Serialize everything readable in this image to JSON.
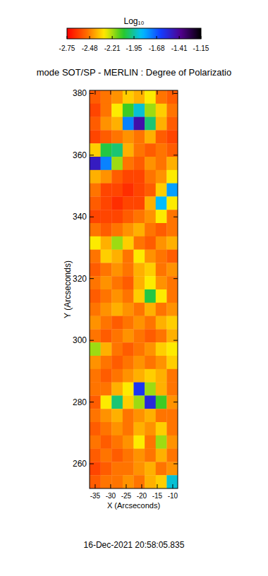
{
  "chart_data": {
    "type": "heatmap",
    "title": "mode SOT/SP - MERLIN : Degree of Polarizatio",
    "x_label": "X (Arcseconds)",
    "y_label": "Y (Arcseconds)",
    "footer": "16-Dec-2021 20:58:05.835",
    "xlim": [
      -36.8,
      -8.4
    ],
    "ylim": [
      252,
      381
    ],
    "xticks": [
      -35,
      -30,
      -25,
      -20,
      -15,
      -10
    ],
    "yticks": [
      260,
      280,
      300,
      320,
      340,
      360,
      380
    ],
    "colorbar": {
      "label": "Log₁₀",
      "range": [
        -2.75,
        -1.15
      ],
      "ticks": [
        -2.75,
        -2.48,
        -2.21,
        -1.95,
        -1.68,
        -1.41,
        -1.15
      ]
    },
    "x": [
      -35.03,
      -31.48,
      -27.93,
      -24.38,
      -20.83,
      -17.28,
      -13.73,
      -10.18
    ],
    "y": [
      378.85,
      374.55,
      370.25,
      365.95,
      361.65,
      357.35,
      353.05,
      348.75,
      344.45,
      340.15,
      335.85,
      331.55,
      327.25,
      322.95,
      318.65,
      314.35,
      310.05,
      305.75,
      301.45,
      297.15,
      292.85,
      288.55,
      284.25,
      279.95,
      275.65,
      271.35,
      267.05,
      262.75,
      258.45,
      254.15
    ],
    "z": [
      [
        -2.55,
        -2.5,
        -2.45,
        -2.35,
        -2.4,
        -2.3,
        -2.5,
        -2.55
      ],
      [
        -2.6,
        -2.5,
        -2.3,
        -2.1,
        -1.9,
        -2.2,
        -2.35,
        -2.5
      ],
      [
        -2.55,
        -2.45,
        -2.4,
        -1.75,
        -1.45,
        -2.0,
        -2.4,
        -2.55
      ],
      [
        -2.6,
        -2.55,
        -2.5,
        -2.45,
        -2.5,
        -2.4,
        -2.55,
        -2.6
      ],
      [
        -2.35,
        -2.05,
        -2.0,
        -2.4,
        -2.5,
        -2.55,
        -2.5,
        -2.55
      ],
      [
        -1.5,
        -1.75,
        -2.2,
        -2.5,
        -2.55,
        -2.45,
        -2.5,
        -2.4
      ],
      [
        -2.4,
        -2.45,
        -2.55,
        -2.6,
        -2.6,
        -2.5,
        -2.45,
        -2.3
      ],
      [
        -2.5,
        -2.6,
        -2.6,
        -2.65,
        -2.6,
        -2.55,
        -2.35,
        -1.8
      ],
      [
        -2.55,
        -2.6,
        -2.65,
        -2.6,
        -2.6,
        -2.4,
        -1.85,
        -2.3
      ],
      [
        -2.6,
        -2.6,
        -2.6,
        -2.55,
        -2.5,
        -2.45,
        -2.3,
        -2.5
      ],
      [
        -2.5,
        -2.55,
        -2.5,
        -2.45,
        -2.4,
        -2.5,
        -2.55,
        -2.5
      ],
      [
        -2.3,
        -2.4,
        -2.2,
        -2.35,
        -2.5,
        -2.55,
        -2.45,
        -2.4
      ],
      [
        -2.5,
        -2.35,
        -2.4,
        -2.5,
        -2.3,
        -2.45,
        -2.5,
        -2.55
      ],
      [
        -2.55,
        -2.5,
        -2.45,
        -2.5,
        -2.4,
        -2.35,
        -2.5,
        -2.45
      ],
      [
        -2.5,
        -2.45,
        -2.5,
        -2.55,
        -2.4,
        -2.3,
        -2.45,
        -2.5
      ],
      [
        -2.55,
        -2.5,
        -2.45,
        -2.5,
        -2.35,
        -2.05,
        -2.3,
        -2.5
      ],
      [
        -2.5,
        -2.45,
        -2.4,
        -2.45,
        -2.5,
        -2.4,
        -2.5,
        -2.45
      ],
      [
        -2.45,
        -2.5,
        -2.55,
        -2.5,
        -2.45,
        -2.5,
        -2.4,
        -2.35
      ],
      [
        -2.5,
        -2.55,
        -2.5,
        -2.45,
        -2.5,
        -2.55,
        -2.5,
        -2.4
      ],
      [
        -2.2,
        -2.4,
        -2.5,
        -2.55,
        -2.5,
        -2.45,
        -2.35,
        -2.3
      ],
      [
        -2.45,
        -2.5,
        -2.55,
        -2.5,
        -2.45,
        -2.5,
        -2.45,
        -2.35
      ],
      [
        -2.5,
        -2.55,
        -2.5,
        -2.45,
        -2.4,
        -2.35,
        -2.4,
        -2.5
      ],
      [
        -2.5,
        -2.5,
        -2.4,
        -2.3,
        -1.6,
        -2.2,
        -2.4,
        -2.5
      ],
      [
        -2.55,
        -2.3,
        -2.0,
        -2.35,
        -2.2,
        -1.55,
        -2.1,
        -2.45
      ],
      [
        -2.5,
        -2.45,
        -2.4,
        -2.5,
        -2.45,
        -2.4,
        -2.5,
        -2.5
      ],
      [
        -2.55,
        -2.5,
        -2.45,
        -2.5,
        -2.4,
        -2.45,
        -2.35,
        -2.5
      ],
      [
        -2.5,
        -2.55,
        -2.5,
        -2.45,
        -2.3,
        -2.5,
        -2.2,
        -2.45
      ],
      [
        -2.55,
        -2.5,
        -2.55,
        -2.5,
        -2.45,
        -2.5,
        -2.4,
        -2.5
      ],
      [
        -2.6,
        -2.55,
        -2.5,
        -2.5,
        -2.45,
        -2.4,
        -2.5,
        -2.45
      ],
      [
        -2.55,
        -2.5,
        -2.5,
        -2.45,
        -2.5,
        -2.4,
        -2.35,
        -1.9
      ]
    ]
  }
}
